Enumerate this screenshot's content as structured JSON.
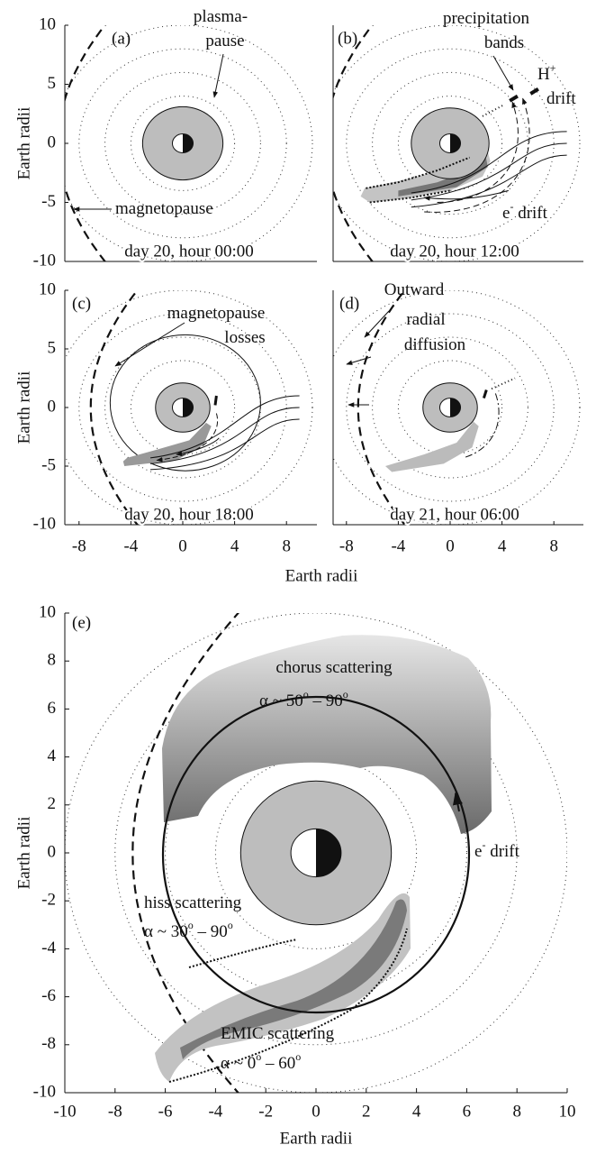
{
  "panels": [
    {
      "label": "(a)",
      "caption": "day 20, hour 00:00",
      "notes": [
        [
          "plasma-"
        ],
        [
          "pause"
        ],
        [
          "magnetopause"
        ]
      ]
    },
    {
      "label": "(b)",
      "caption": "day 20, hour 12:00",
      "notes": [
        [
          "precipitation"
        ],
        [
          "bands"
        ],
        [
          "H",
          "+"
        ],
        [
          "drift"
        ],
        [
          "e",
          "-",
          " drift"
        ]
      ]
    },
    {
      "label": "(c)",
      "caption": "day 20, hour 18:00",
      "notes": [
        [
          "magnetopause"
        ],
        [
          "losses"
        ]
      ]
    },
    {
      "label": "(d)",
      "caption": "day 21, hour 06:00",
      "notes": [
        [
          "Outward"
        ],
        [
          "radial"
        ],
        [
          "diffusion"
        ]
      ]
    },
    {
      "label": "(e)",
      "notes": [
        [
          "chorus scattering"
        ],
        [
          "α ~ 50",
          "o",
          " – 90",
          "o"
        ],
        [
          "e",
          "-",
          " drift"
        ],
        [
          "hiss scattering"
        ],
        [
          "α ~ 30",
          "o",
          " – 90",
          "o"
        ],
        [
          "EMIC scattering"
        ],
        [
          "α ~ 0",
          "o",
          " – 60",
          "o"
        ]
      ]
    }
  ],
  "top_grid": {
    "x_ticks": [
      -8,
      -4,
      0,
      4,
      8
    ],
    "y_ticks": [
      -10,
      -5,
      0,
      5,
      10
    ],
    "x_label": "Earth radii",
    "y_labels": [
      "Earth radii",
      "Earth radii"
    ]
  },
  "panel_e": {
    "x_ticks": [
      -10,
      -8,
      -6,
      -4,
      -2,
      0,
      2,
      4,
      6,
      8,
      10
    ],
    "y_ticks": [
      -10,
      -8,
      -6,
      -4,
      -2,
      0,
      2,
      4,
      6,
      8,
      10
    ],
    "x_label": "Earth radii",
    "y_label": "Earth radii"
  }
}
